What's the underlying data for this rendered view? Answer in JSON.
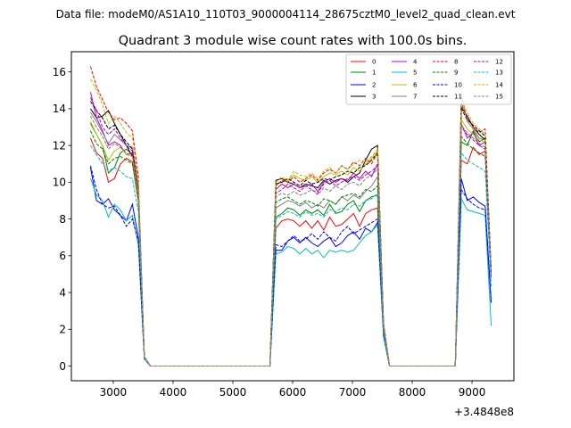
{
  "chart_data": {
    "type": "line",
    "suptitle": "Data file: modeM0/AS1A10_110T03_9000004114_28675cztM0_level2_quad_clean.evt",
    "title": "Quadrant 3 module wise count rates with 100.0s bins.",
    "xlabel": "",
    "ylabel": "",
    "offset_label": "+3.4848e8",
    "xlim": [
      2300,
      9700
    ],
    "ylim": [
      -0.8,
      17.1
    ],
    "xticks": [
      3000,
      4000,
      5000,
      6000,
      7000,
      8000,
      9000
    ],
    "yticks": [
      0,
      2,
      4,
      6,
      8,
      10,
      12,
      14,
      16
    ],
    "legend_position": "top-right",
    "x": [
      2620,
      2720,
      2820,
      2920,
      3020,
      3120,
      3220,
      3320,
      3420,
      3520,
      3620,
      3720,
      3820,
      3920,
      4020,
      4120,
      4220,
      4320,
      4420,
      4520,
      4620,
      4720,
      4820,
      4920,
      5020,
      5120,
      5220,
      5320,
      5420,
      5520,
      5620,
      5720,
      5820,
      5920,
      6020,
      6120,
      6220,
      6320,
      6420,
      6520,
      6620,
      6720,
      6820,
      6920,
      7020,
      7120,
      7220,
      7320,
      7420,
      7520,
      7620,
      7720,
      7820,
      7920,
      8020,
      8120,
      8220,
      8320,
      8420,
      8520,
      8620,
      8720,
      8820,
      8920,
      9020,
      9120,
      9220,
      9320
    ],
    "series": [
      {
        "name": "0",
        "color": "#ff0000",
        "dash": "solid",
        "values": [
          12.4,
          11.6,
          11.3,
          10.0,
          10.2,
          11.0,
          11.3,
          11.1,
          9.0,
          0.5,
          0,
          0,
          0,
          0,
          0,
          0,
          0,
          0,
          0,
          0,
          0,
          0,
          0,
          0,
          0,
          0,
          0,
          0,
          0,
          0,
          0,
          7.5,
          7.9,
          8.0,
          7.9,
          7.6,
          7.9,
          7.5,
          7.9,
          7.4,
          8.1,
          7.6,
          7.7,
          8.0,
          8.3,
          7.6,
          8.3,
          8.5,
          8.6,
          2.0,
          0,
          0,
          0,
          0,
          0,
          0,
          0,
          0,
          0,
          0,
          0,
          0,
          11.2,
          11.0,
          11.9,
          11.5,
          11.7,
          4.8
        ]
      },
      {
        "name": "1",
        "color": "#008000",
        "dash": "solid",
        "values": [
          13.2,
          12.6,
          12.0,
          10.5,
          10.8,
          11.6,
          11.8,
          11.5,
          9.3,
          0.5,
          0,
          0,
          0,
          0,
          0,
          0,
          0,
          0,
          0,
          0,
          0,
          0,
          0,
          0,
          0,
          0,
          0,
          0,
          0,
          0,
          0,
          8.1,
          8.3,
          8.6,
          8.5,
          8.2,
          8.5,
          8.3,
          8.5,
          8.2,
          8.8,
          8.3,
          8.4,
          8.8,
          9.0,
          8.4,
          9.0,
          9.2,
          9.3,
          2.1,
          0,
          0,
          0,
          0,
          0,
          0,
          0,
          0,
          0,
          0,
          0,
          0,
          12.2,
          12.0,
          12.8,
          12.2,
          12.4,
          4.8
        ]
      },
      {
        "name": "2",
        "color": "#0000ff",
        "dash": "solid",
        "values": [
          10.8,
          9.0,
          8.8,
          9.1,
          8.5,
          8.2,
          7.9,
          8.8,
          7.0,
          0.4,
          0,
          0,
          0,
          0,
          0,
          0,
          0,
          0,
          0,
          0,
          0,
          0,
          0,
          0,
          0,
          0,
          0,
          0,
          0,
          0,
          0,
          6.3,
          6.3,
          6.8,
          7.0,
          6.7,
          7.0,
          6.7,
          6.5,
          6.8,
          7.0,
          6.5,
          6.7,
          7.1,
          7.3,
          6.9,
          7.5,
          7.3,
          7.8,
          1.7,
          0,
          0,
          0,
          0,
          0,
          0,
          0,
          0,
          0,
          0,
          0,
          0,
          10.2,
          9.0,
          9.2,
          8.9,
          8.7,
          3.5
        ]
      },
      {
        "name": "3",
        "color": "#000000",
        "dash": "solid",
        "values": [
          14.0,
          13.5,
          13.6,
          13.9,
          13.2,
          12.6,
          12.0,
          11.4,
          9.6,
          0.5,
          0,
          0,
          0,
          0,
          0,
          0,
          0,
          0,
          0,
          0,
          0,
          0,
          0,
          0,
          0,
          0,
          0,
          0,
          0,
          0,
          0,
          10.1,
          10.2,
          10.0,
          9.9,
          9.7,
          9.9,
          9.8,
          9.7,
          10.1,
          9.9,
          10.1,
          10.2,
          10.0,
          10.3,
          10.5,
          11.2,
          11.8,
          12.0,
          2.3,
          0,
          0,
          0,
          0,
          0,
          0,
          0,
          0,
          0,
          0,
          0,
          0,
          14.1,
          13.6,
          13.0,
          12.6,
          12.3,
          5.2
        ]
      },
      {
        "name": "4",
        "color": "#bf00bf",
        "dash": "solid",
        "values": [
          14.9,
          13.5,
          12.8,
          12.0,
          12.2,
          12.0,
          11.5,
          11.6,
          9.5,
          0.5,
          0,
          0,
          0,
          0,
          0,
          0,
          0,
          0,
          0,
          0,
          0,
          0,
          0,
          0,
          0,
          0,
          0,
          0,
          0,
          0,
          0,
          9.6,
          9.9,
          9.7,
          9.9,
          9.7,
          9.8,
          9.9,
          9.5,
          10.0,
          10.2,
          10.0,
          10.2,
          10.1,
          10.5,
          10.2,
          10.6,
          10.3,
          11.0,
          2.2,
          0,
          0,
          0,
          0,
          0,
          0,
          0,
          0,
          0,
          0,
          0,
          0,
          13.2,
          12.4,
          12.7,
          12.0,
          12.2,
          4.9
        ]
      },
      {
        "name": "5",
        "color": "#00bfbf",
        "dash": "solid",
        "values": [
          10.2,
          9.3,
          9.0,
          8.1,
          8.8,
          8.5,
          7.9,
          8.2,
          6.6,
          0.4,
          0,
          0,
          0,
          0,
          0,
          0,
          0,
          0,
          0,
          0,
          0,
          0,
          0,
          0,
          0,
          0,
          0,
          0,
          0,
          0,
          0,
          6.1,
          6.2,
          6.5,
          6.4,
          6.1,
          6.4,
          6.1,
          6.3,
          5.9,
          6.3,
          6.2,
          6.3,
          6.2,
          6.3,
          6.7,
          7.1,
          7.3,
          7.7,
          1.6,
          0,
          0,
          0,
          0,
          0,
          0,
          0,
          0,
          0,
          0,
          0,
          0,
          9.1,
          8.5,
          8.4,
          8.3,
          8.2,
          2.2
        ]
      },
      {
        "name": "6",
        "color": "#bfbf00",
        "dash": "solid",
        "values": [
          13.3,
          12.6,
          12.0,
          11.2,
          11.7,
          11.9,
          11.5,
          11.4,
          9.3,
          0.5,
          0,
          0,
          0,
          0,
          0,
          0,
          0,
          0,
          0,
          0,
          0,
          0,
          0,
          0,
          0,
          0,
          0,
          0,
          0,
          0,
          0,
          9.9,
          10.0,
          10.1,
          10.4,
          10.2,
          10.1,
          10.3,
          10.0,
          10.3,
          10.5,
          10.4,
          10.6,
          10.4,
          10.8,
          10.6,
          11.0,
          11.3,
          11.7,
          2.2,
          0,
          0,
          0,
          0,
          0,
          0,
          0,
          0,
          0,
          0,
          0,
          0,
          13.4,
          12.9,
          12.6,
          12.3,
          12.2,
          4.9
        ]
      },
      {
        "name": "7",
        "color": "#808080",
        "dash": "solid",
        "values": [
          13.8,
          13.3,
          12.7,
          12.1,
          12.6,
          12.3,
          12.0,
          11.9,
          9.7,
          0.5,
          0,
          0,
          0,
          0,
          0,
          0,
          0,
          0,
          0,
          0,
          0,
          0,
          0,
          0,
          0,
          0,
          0,
          0,
          0,
          0,
          0,
          8.6,
          8.8,
          9.0,
          8.9,
          8.7,
          8.9,
          8.6,
          8.8,
          8.6,
          9.0,
          8.8,
          9.2,
          9.0,
          9.3,
          9.1,
          9.5,
          9.8,
          10.3,
          2.0,
          0,
          0,
          0,
          0,
          0,
          0,
          0,
          0,
          0,
          0,
          0,
          0,
          14.8,
          13.3,
          12.9,
          12.4,
          12.3,
          5.0
        ]
      },
      {
        "name": "8",
        "color": "#ff0000",
        "dash": "dashed",
        "values": [
          16.3,
          15.2,
          14.5,
          13.8,
          13.4,
          13.5,
          13.2,
          12.8,
          10.3,
          0.5,
          0,
          0,
          0,
          0,
          0,
          0,
          0,
          0,
          0,
          0,
          0,
          0,
          0,
          0,
          0,
          0,
          0,
          0,
          0,
          0,
          0,
          9.8,
          10.1,
          10.0,
          10.3,
          10.0,
          10.2,
          10.4,
          10.1,
          10.5,
          10.7,
          10.5,
          10.9,
          10.7,
          11.1,
          10.9,
          11.3,
          11.0,
          11.6,
          2.3,
          0,
          0,
          0,
          0,
          0,
          0,
          0,
          0,
          0,
          0,
          0,
          0,
          14.3,
          13.5,
          13.0,
          12.7,
          12.9,
          5.2
        ]
      },
      {
        "name": "9",
        "color": "#008000",
        "dash": "dashed",
        "values": [
          12.8,
          12.1,
          11.8,
          11.0,
          11.3,
          11.4,
          11.2,
          11.0,
          9.0,
          0.5,
          0,
          0,
          0,
          0,
          0,
          0,
          0,
          0,
          0,
          0,
          0,
          0,
          0,
          0,
          0,
          0,
          0,
          0,
          0,
          0,
          0,
          8.9,
          9.1,
          9.2,
          9.0,
          8.8,
          9.0,
          8.9,
          8.7,
          9.1,
          9.0,
          8.8,
          9.2,
          9.3,
          9.4,
          9.2,
          9.6,
          9.5,
          9.8,
          2.0,
          0,
          0,
          0,
          0,
          0,
          0,
          0,
          0,
          0,
          0,
          0,
          0,
          12.5,
          12.1,
          11.8,
          11.6,
          11.4,
          4.8
        ]
      },
      {
        "name": "10",
        "color": "#0000ff",
        "dash": "dashed",
        "values": [
          10.9,
          9.6,
          8.8,
          8.6,
          8.7,
          8.2,
          7.6,
          8.0,
          6.8,
          0.4,
          0,
          0,
          0,
          0,
          0,
          0,
          0,
          0,
          0,
          0,
          0,
          0,
          0,
          0,
          0,
          0,
          0,
          0,
          0,
          0,
          0,
          6.6,
          6.5,
          6.8,
          7.1,
          6.8,
          6.9,
          7.2,
          6.9,
          7.3,
          7.0,
          6.8,
          7.3,
          7.6,
          7.2,
          7.4,
          7.6,
          7.8,
          8.0,
          1.7,
          0,
          0,
          0,
          0,
          0,
          0,
          0,
          0,
          0,
          0,
          0,
          0,
          9.6,
          9.1,
          8.8,
          8.6,
          8.5,
          3.4
        ]
      },
      {
        "name": "11",
        "color": "#000000",
        "dash": "dashed",
        "values": [
          14.4,
          13.9,
          13.5,
          12.9,
          13.1,
          12.6,
          12.2,
          11.8,
          9.6,
          0.5,
          0,
          0,
          0,
          0,
          0,
          0,
          0,
          0,
          0,
          0,
          0,
          0,
          0,
          0,
          0,
          0,
          0,
          0,
          0,
          0,
          0,
          9.9,
          10.0,
          10.2,
          10.0,
          9.8,
          10.1,
          9.9,
          10.0,
          10.2,
          10.1,
          10.3,
          10.4,
          10.6,
          10.5,
          10.8,
          10.9,
          11.2,
          11.6,
          2.3,
          0,
          0,
          0,
          0,
          0,
          0,
          0,
          0,
          0,
          0,
          0,
          0,
          14.0,
          13.4,
          13.1,
          12.8,
          12.5,
          5.1
        ]
      },
      {
        "name": "12",
        "color": "#bf00bf",
        "dash": "dashed",
        "values": [
          14.6,
          13.9,
          13.0,
          12.6,
          12.9,
          12.4,
          12.0,
          11.7,
          9.5,
          0.5,
          0,
          0,
          0,
          0,
          0,
          0,
          0,
          0,
          0,
          0,
          0,
          0,
          0,
          0,
          0,
          0,
          0,
          0,
          0,
          0,
          0,
          9.4,
          9.6,
          9.9,
          9.7,
          9.5,
          9.8,
          9.6,
          9.4,
          9.9,
          10.1,
          9.8,
          10.0,
          10.2,
          10.3,
          10.1,
          10.4,
          10.6,
          10.9,
          2.2,
          0,
          0,
          0,
          0,
          0,
          0,
          0,
          0,
          0,
          0,
          0,
          0,
          13.0,
          12.6,
          12.3,
          12.0,
          11.8,
          4.9
        ]
      },
      {
        "name": "13",
        "color": "#00bfbf",
        "dash": "dashed",
        "values": [
          12.0,
          11.5,
          11.0,
          10.6,
          10.8,
          10.6,
          10.3,
          10.2,
          8.4,
          0.4,
          0,
          0,
          0,
          0,
          0,
          0,
          0,
          0,
          0,
          0,
          0,
          0,
          0,
          0,
          0,
          0,
          0,
          0,
          0,
          0,
          0,
          8.0,
          8.2,
          8.4,
          8.3,
          8.1,
          8.4,
          8.2,
          8.3,
          8.1,
          8.5,
          8.4,
          8.6,
          8.5,
          8.8,
          8.7,
          9.0,
          9.1,
          9.4,
          1.9,
          0,
          0,
          0,
          0,
          0,
          0,
          0,
          0,
          0,
          0,
          0,
          0,
          11.6,
          11.2,
          11.0,
          10.8,
          10.6,
          4.3
        ]
      },
      {
        "name": "14",
        "color": "#bfbf00",
        "dash": "dashed",
        "values": [
          15.6,
          15.0,
          14.2,
          13.2,
          13.6,
          13.2,
          12.7,
          12.4,
          9.9,
          0.5,
          0,
          0,
          0,
          0,
          0,
          0,
          0,
          0,
          0,
          0,
          0,
          0,
          0,
          0,
          0,
          0,
          0,
          0,
          0,
          0,
          0,
          10.0,
          10.3,
          10.1,
          10.6,
          10.4,
          10.3,
          10.5,
          10.2,
          10.6,
          10.8,
          10.5,
          10.9,
          10.7,
          11.0,
          11.2,
          11.1,
          11.4,
          11.8,
          2.3,
          0,
          0,
          0,
          0,
          0,
          0,
          0,
          0,
          0,
          0,
          0,
          0,
          14.5,
          13.8,
          13.2,
          12.9,
          12.6,
          5.2
        ]
      },
      {
        "name": "15",
        "color": "#808080",
        "dash": "dashed",
        "values": [
          13.6,
          13.0,
          12.5,
          11.8,
          12.1,
          11.9,
          11.6,
          11.4,
          9.4,
          0.5,
          0,
          0,
          0,
          0,
          0,
          0,
          0,
          0,
          0,
          0,
          0,
          0,
          0,
          0,
          0,
          0,
          0,
          0,
          0,
          0,
          0,
          9.2,
          9.4,
          9.3,
          9.5,
          9.3,
          9.4,
          9.6,
          9.3,
          9.7,
          9.5,
          9.8,
          9.6,
          9.9,
          10.0,
          9.8,
          10.2,
          10.4,
          10.7,
          2.1,
          0,
          0,
          0,
          0,
          0,
          0,
          0,
          0,
          0,
          0,
          0,
          0,
          13.1,
          12.7,
          12.4,
          12.1,
          11.9,
          4.8
        ]
      }
    ]
  }
}
